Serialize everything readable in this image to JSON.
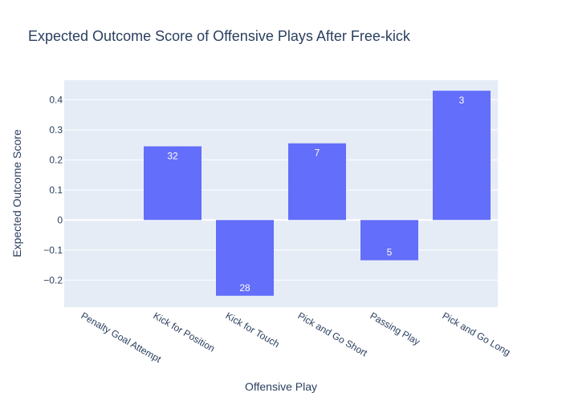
{
  "chart_data": {
    "type": "bar",
    "title": "Expected Outcome Score of Offensive Plays After Free-kick",
    "xlabel": "Offensive Play",
    "ylabel": "Expected Outcome Score",
    "categories": [
      "Penalty Goal Attempt",
      "Kick for Position",
      "Kick for Touch",
      "Pick and Go Short",
      "Passing Play",
      "Pick and Go Long"
    ],
    "values": [
      0,
      0.245,
      -0.252,
      0.255,
      -0.134,
      0.43
    ],
    "bar_labels": [
      "",
      "32",
      "28",
      "7",
      "5",
      "3"
    ],
    "ylim": [
      -0.29,
      0.465
    ],
    "yticks": [
      -0.2,
      -0.1,
      0,
      0.1,
      0.2,
      0.3,
      0.4
    ],
    "ytick_labels": [
      "−0.2",
      "−0.1",
      "0",
      "0.1",
      "0.2",
      "0.3",
      "0.4"
    ],
    "bar_color": "#636efa",
    "plot_bg": "#e5ecf6",
    "grid": true
  }
}
